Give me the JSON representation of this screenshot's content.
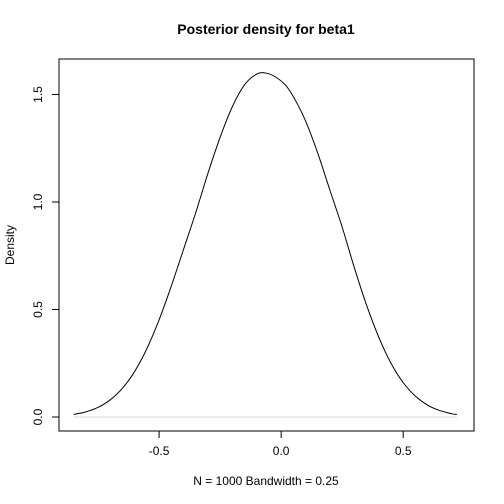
{
  "chart_data": {
    "type": "line",
    "title": "Posterior density for beta1",
    "xlabel": "N = 1000   Bandwidth = 0.25",
    "ylabel": "Density",
    "xlim": [
      -0.91,
      0.79
    ],
    "ylim": [
      -0.065,
      1.665
    ],
    "xticks": [
      -0.5,
      0.0,
      0.5
    ],
    "xtick_labels": [
      "-0.5",
      "0.0",
      "0.5"
    ],
    "yticks": [
      0.0,
      0.5,
      1.0,
      1.5
    ],
    "ytick_labels": [
      "0.0",
      "0.5",
      "1.0",
      "1.5"
    ],
    "grid": false,
    "baseline": 0,
    "baseline_color": "#d9d9d9",
    "line_color": "#000000",
    "series": [
      {
        "x": [
          -0.85,
          -0.8,
          -0.75,
          -0.7,
          -0.65,
          -0.6,
          -0.55,
          -0.5,
          -0.45,
          -0.4,
          -0.35,
          -0.3,
          -0.25,
          -0.2,
          -0.15,
          -0.1,
          -0.06,
          -0.02,
          0.02,
          0.06,
          0.1,
          0.15,
          0.2,
          0.25,
          0.3,
          0.35,
          0.4,
          0.45,
          0.5,
          0.55,
          0.6,
          0.65,
          0.7,
          0.72
        ],
        "y": [
          0.012,
          0.024,
          0.045,
          0.08,
          0.134,
          0.212,
          0.318,
          0.452,
          0.609,
          0.779,
          0.95,
          1.133,
          1.301,
          1.443,
          1.545,
          1.595,
          1.599,
          1.579,
          1.541,
          1.47,
          1.377,
          1.227,
          1.054,
          0.883,
          0.694,
          0.52,
          0.371,
          0.25,
          0.16,
          0.097,
          0.055,
          0.03,
          0.015,
          0.012
        ]
      }
    ]
  }
}
